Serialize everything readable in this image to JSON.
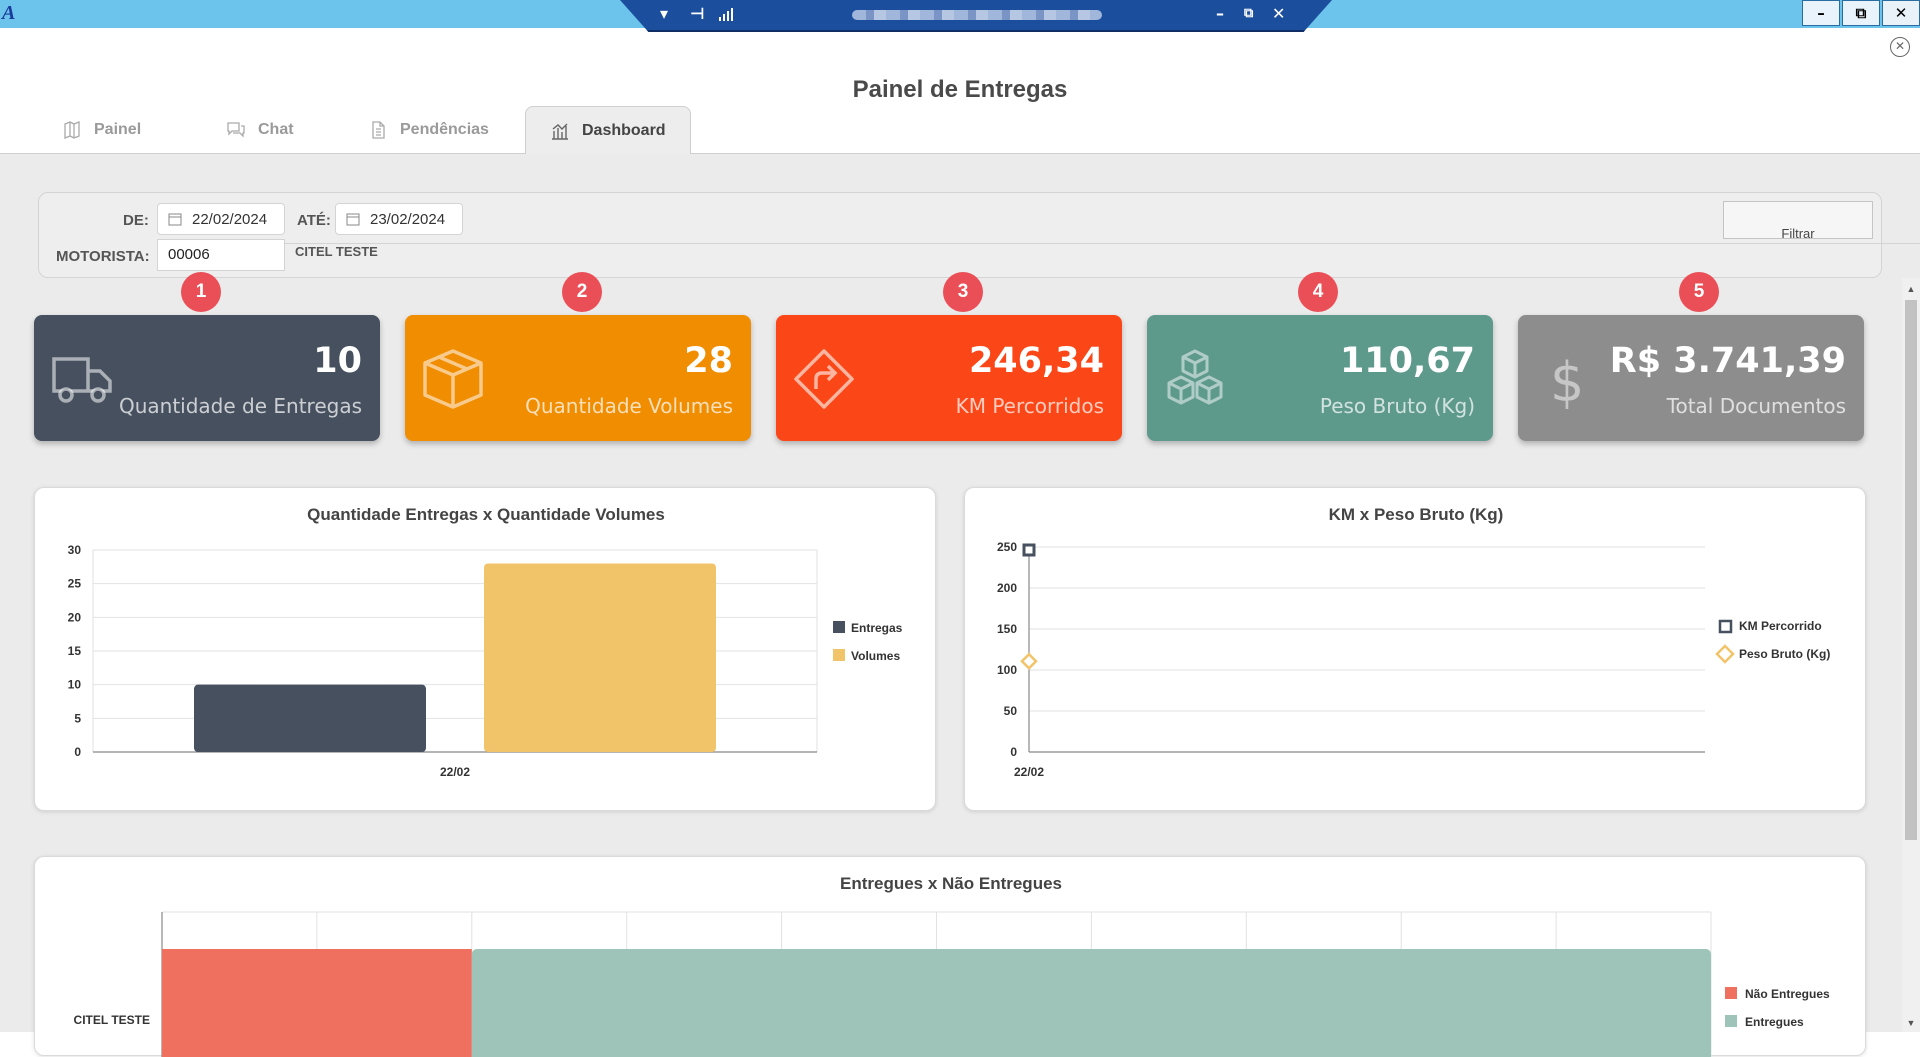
{
  "page": {
    "title": "Painel de Entregas"
  },
  "tabs": [
    {
      "label": "Painel",
      "icon": "map-icon"
    },
    {
      "label": "Chat",
      "icon": "chat-icon"
    },
    {
      "label": "Pendências",
      "icon": "document-icon"
    },
    {
      "label": "Dashboard",
      "icon": "bar-chart-icon",
      "active": true
    }
  ],
  "filters": {
    "from_label": "DE:",
    "from_value": "22/02/2024",
    "to_label": "ATÉ:",
    "to_value": "23/02/2024",
    "driver_label": "MOTORISTA:",
    "driver_code": "00006",
    "driver_name": "CITEL TESTE",
    "filter_button": "Filtrar"
  },
  "badges": [
    "1",
    "2",
    "3",
    "4",
    "5"
  ],
  "cards": [
    {
      "value": "10",
      "label": "Quantidade de Entregas",
      "color": "#46505e",
      "icon": "truck-icon"
    },
    {
      "value": "28",
      "label": "Quantidade Volumes",
      "color": "#f08d00",
      "icon": "box-icon"
    },
    {
      "value": "246,34",
      "label": "KM Percorridos",
      "color": "#fb4717",
      "icon": "route-sign-icon"
    },
    {
      "value": "110,67",
      "label": "Peso Bruto (Kg)",
      "color": "#5e9a8c",
      "icon": "cubes-icon"
    },
    {
      "value": "R$ 3.741,39",
      "label": "Total Documentos",
      "color": "#8d8d8d",
      "icon": "dollar-icon"
    }
  ],
  "chart_data": [
    {
      "type": "bar",
      "title": "Quantidade Entregas x Quantidade Volumes",
      "categories": [
        "22/02"
      ],
      "series": [
        {
          "name": "Entregas",
          "values": [
            10
          ],
          "color": "#46505e"
        },
        {
          "name": "Volumes",
          "values": [
            28
          ],
          "color": "#f2c46a"
        }
      ],
      "ylim": [
        0,
        30
      ],
      "yticks": [
        0,
        5,
        10,
        15,
        20,
        25,
        30
      ],
      "grid": true,
      "legend": "right"
    },
    {
      "type": "scatter",
      "title": "KM x Peso Bruto (Kg)",
      "categories": [
        "22/02"
      ],
      "series": [
        {
          "name": "KM Percorrido",
          "values": [
            246.34
          ],
          "color": "#46505e",
          "marker": "square"
        },
        {
          "name": "Peso Bruto (Kg)",
          "values": [
            110.67
          ],
          "color": "#f2c46a",
          "marker": "diamond"
        }
      ],
      "ylim": [
        0,
        250
      ],
      "yticks": [
        0,
        50,
        100,
        150,
        200,
        250
      ],
      "grid": true,
      "legend": "right"
    },
    {
      "type": "bar",
      "orientation": "horizontal",
      "stacked": true,
      "title": "Entregues x Não Entregues",
      "categories": [
        "CITEL TESTE"
      ],
      "series": [
        {
          "name": "Não Entregues",
          "values": [
            2
          ],
          "color": "#f07060"
        },
        {
          "name": "Entregues",
          "values": [
            8
          ],
          "color": "#9ec4b9"
        }
      ],
      "xlim": [
        0,
        10
      ],
      "grid": true,
      "legend": "right"
    }
  ]
}
